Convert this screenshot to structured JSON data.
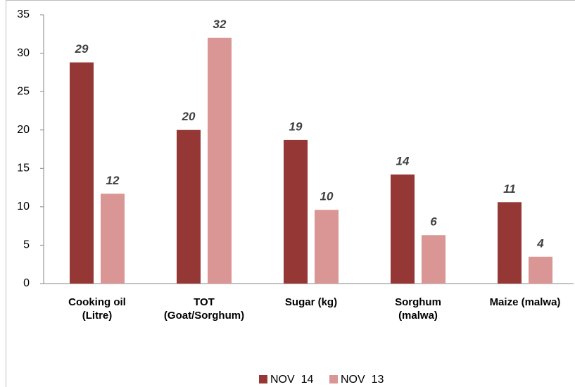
{
  "chart_data": {
    "type": "bar",
    "categories": [
      "Cooking oil\n(Litre)",
      "TOT\n(Goat/Sorghum)",
      "Sugar (kg)",
      "Sorghum\n(malwa)",
      "Maize (malwa)"
    ],
    "series": [
      {
        "name": "NOV  14",
        "color": "#953735",
        "values": [
          28.8,
          20,
          18.7,
          14.2,
          10.6
        ],
        "value_labels": [
          "29",
          "20",
          "19",
          "14",
          "11"
        ]
      },
      {
        "name": "NOV  13",
        "color": "#d99694",
        "values": [
          11.7,
          32,
          9.6,
          6.3,
          3.5
        ],
        "value_labels": [
          "12",
          "32",
          "10",
          "6",
          "4"
        ]
      }
    ],
    "ylim": [
      0,
      35
    ],
    "yticks": [
      0,
      5,
      10,
      15,
      20,
      25,
      30,
      35
    ],
    "grid": false
  }
}
